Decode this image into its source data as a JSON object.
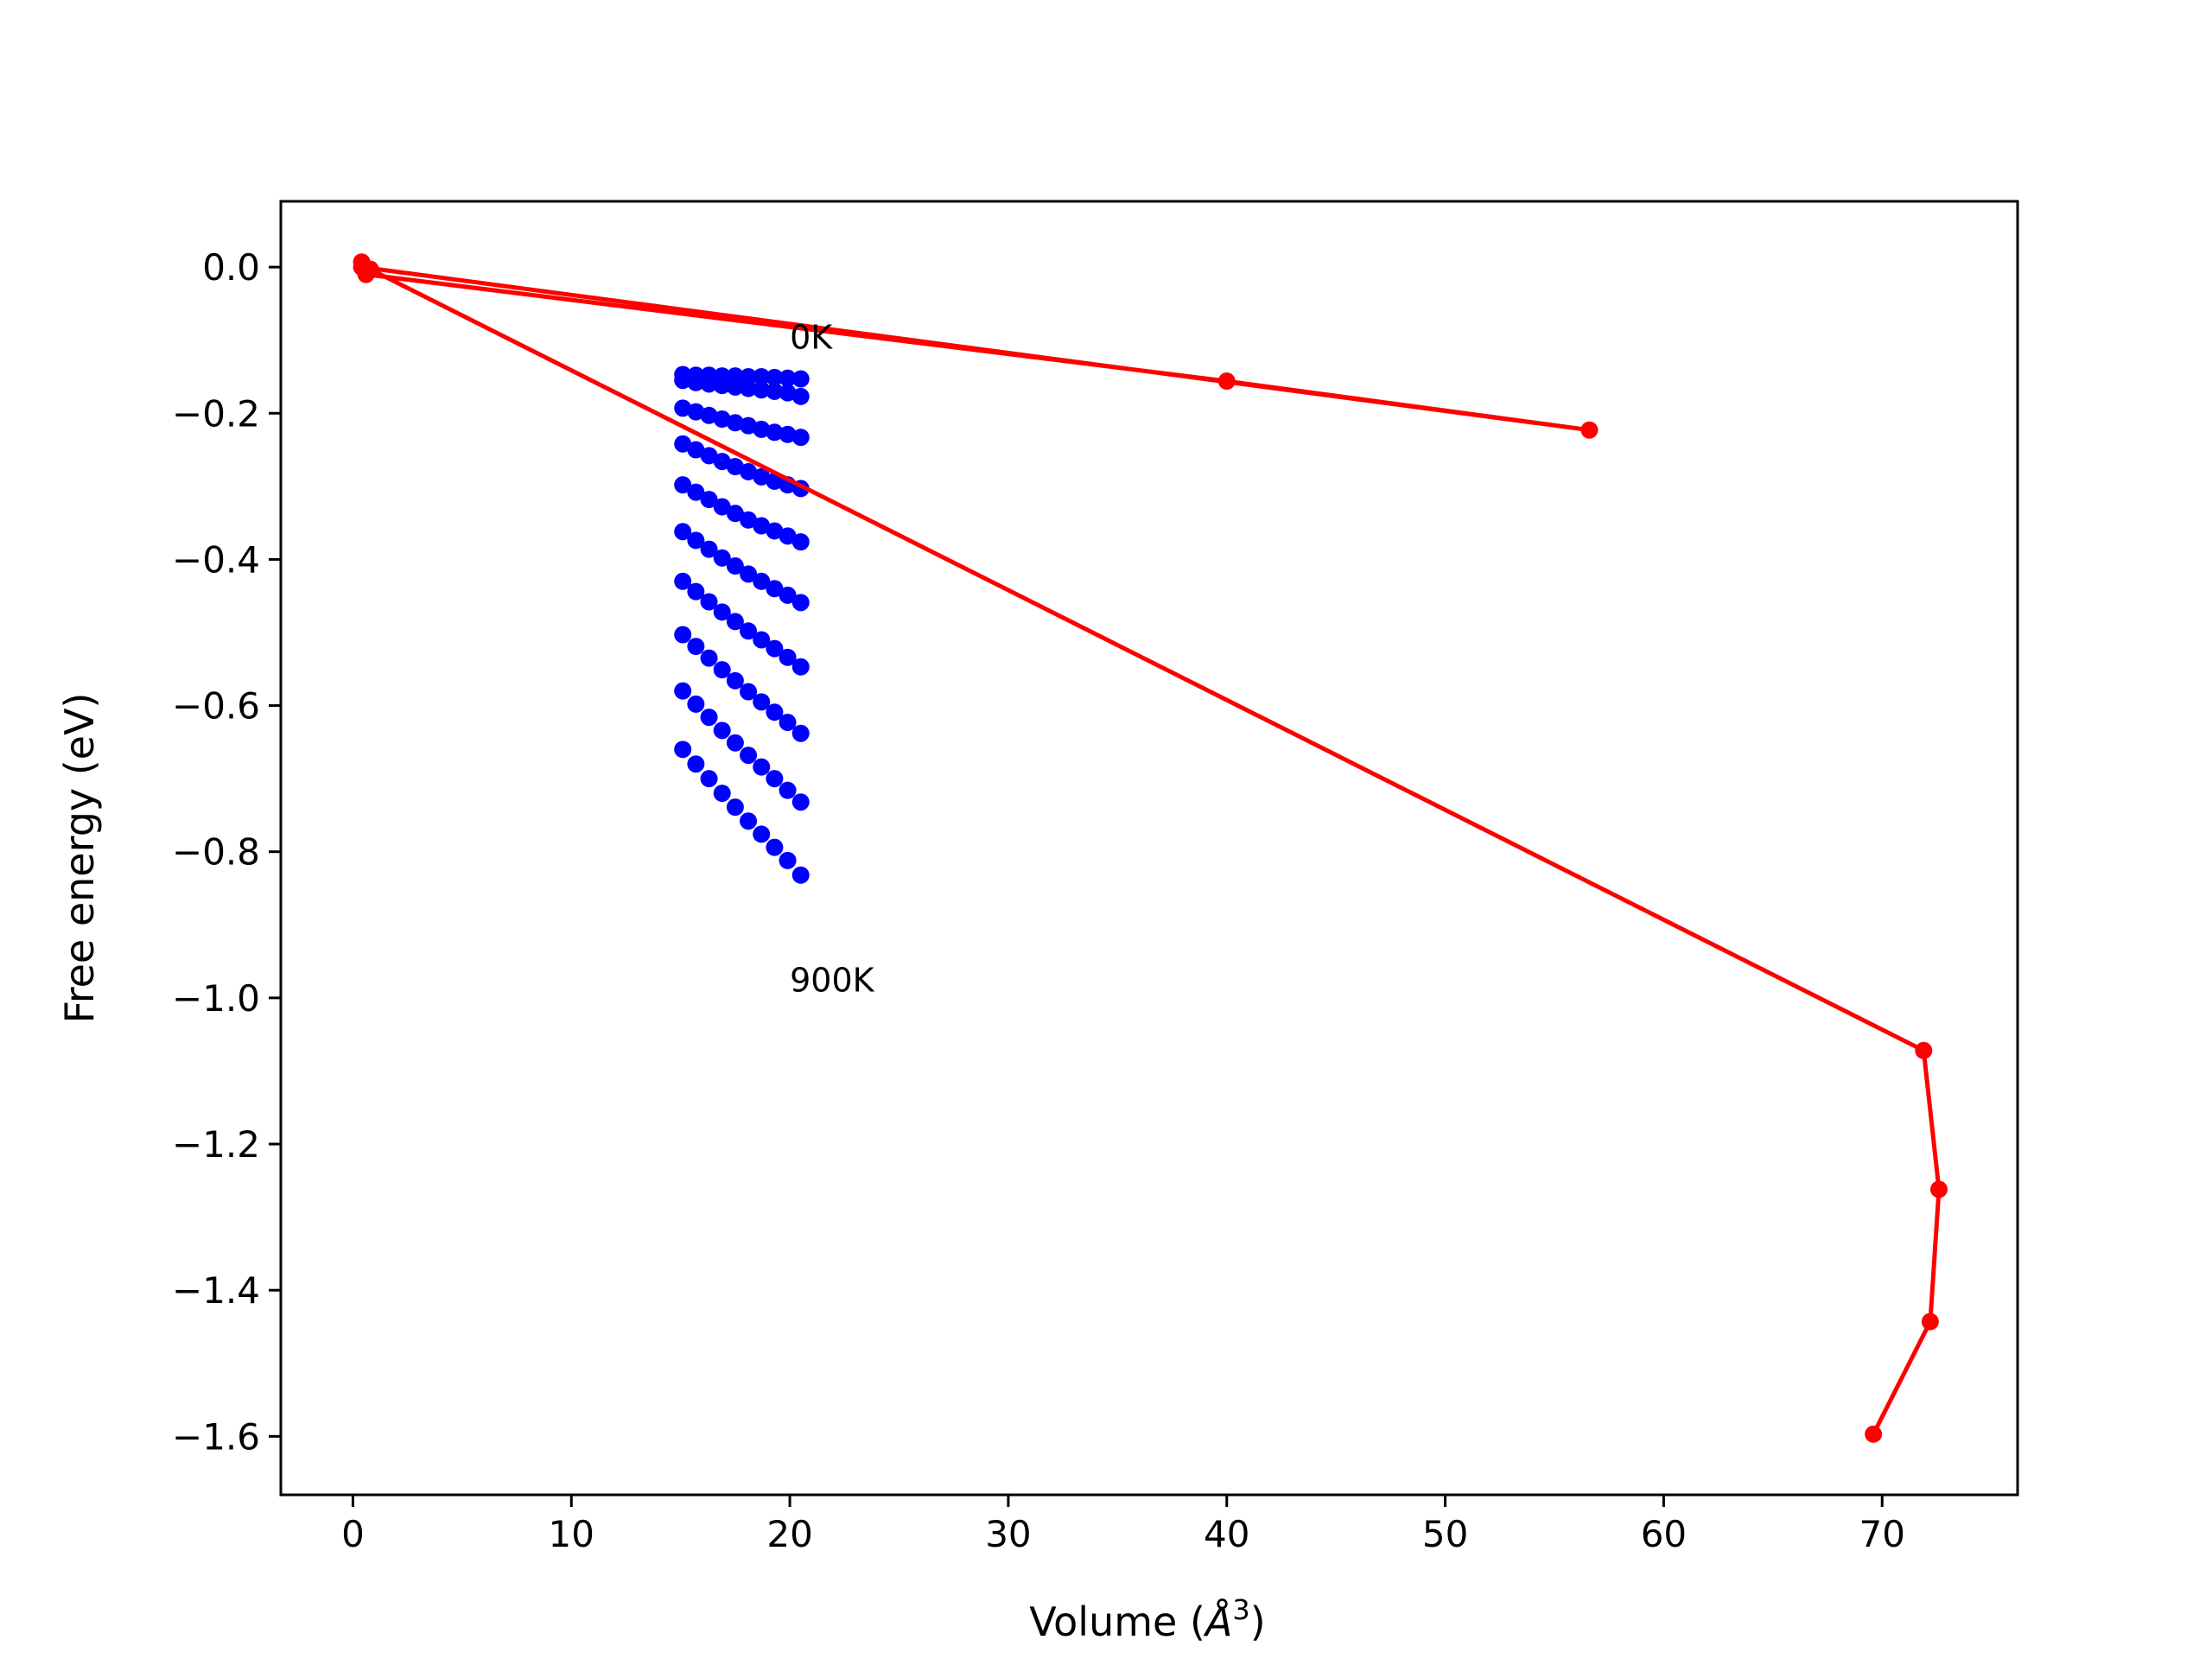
{
  "chart_data": {
    "type": "scatter",
    "xlabel": "Volume",
    "xlabel_unit_base": "Å",
    "xlabel_unit_exp": "3",
    "ylabel": "Free energy (eV)",
    "xlim": [
      -3.3,
      76.2
    ],
    "ylim": [
      -1.68,
      0.09
    ],
    "xticks": [
      0,
      10,
      20,
      30,
      40,
      50,
      60,
      70
    ],
    "xtick_labels": [
      "0",
      "10",
      "20",
      "30",
      "40",
      "50",
      "60",
      "70"
    ],
    "yticks": [
      0.0,
      -0.2,
      -0.4,
      -0.6,
      -0.8,
      -1.0,
      -1.2,
      -1.4,
      -1.6
    ],
    "ytick_labels": [
      "0.0",
      "−0.2",
      "−0.4",
      "−0.6",
      "−0.8",
      "−1.0",
      "−1.2",
      "−1.4",
      "−1.6"
    ],
    "grid": false,
    "annotations": [
      {
        "text": "0K",
        "x": 20.0,
        "y": -0.095
      },
      {
        "text": "900K",
        "x": 20.0,
        "y": -0.975
      }
    ],
    "series": [
      {
        "color": "#0000ff",
        "marker": "dot",
        "line": false,
        "groups": [
          {
            "x": [
              15.1,
              15.7,
              16.3,
              16.9,
              17.5,
              18.1,
              18.7,
              19.3,
              19.9,
              20.5
            ],
            "y": [
              -0.147,
              -0.148,
              -0.148,
              -0.149,
              -0.149,
              -0.15,
              -0.15,
              -0.151,
              -0.152,
              -0.153
            ]
          },
          {
            "x": [
              15.1,
              15.7,
              16.3,
              16.9,
              17.5,
              18.1,
              18.7,
              19.3,
              19.9,
              20.5
            ],
            "y": [
              -0.155,
              -0.158,
              -0.16,
              -0.162,
              -0.164,
              -0.166,
              -0.168,
              -0.17,
              -0.172,
              -0.177
            ]
          },
          {
            "x": [
              15.1,
              15.7,
              16.3,
              16.9,
              17.5,
              18.1,
              18.7,
              19.3,
              19.9,
              20.5
            ],
            "y": [
              -0.193,
              -0.198,
              -0.203,
              -0.208,
              -0.213,
              -0.217,
              -0.222,
              -0.226,
              -0.229,
              -0.233
            ]
          },
          {
            "x": [
              15.1,
              15.7,
              16.3,
              16.9,
              17.5,
              18.1,
              18.7,
              19.3,
              19.9,
              20.5
            ],
            "y": [
              -0.242,
              -0.25,
              -0.258,
              -0.266,
              -0.273,
              -0.28,
              -0.287,
              -0.293,
              -0.298,
              -0.303
            ]
          },
          {
            "x": [
              15.1,
              15.7,
              16.3,
              16.9,
              17.5,
              18.1,
              18.7,
              19.3,
              19.9,
              20.5
            ],
            "y": [
              -0.298,
              -0.308,
              -0.318,
              -0.328,
              -0.337,
              -0.346,
              -0.354,
              -0.361,
              -0.368,
              -0.376
            ]
          },
          {
            "x": [
              15.1,
              15.7,
              16.3,
              16.9,
              17.5,
              18.1,
              18.7,
              19.3,
              19.9,
              20.5
            ],
            "y": [
              -0.362,
              -0.374,
              -0.386,
              -0.398,
              -0.409,
              -0.42,
              -0.43,
              -0.44,
              -0.449,
              -0.459
            ]
          },
          {
            "x": [
              15.1,
              15.7,
              16.3,
              16.9,
              17.5,
              18.1,
              18.7,
              19.3,
              19.9,
              20.5
            ],
            "y": [
              -0.43,
              -0.444,
              -0.458,
              -0.472,
              -0.485,
              -0.498,
              -0.51,
              -0.522,
              -0.534,
              -0.547
            ]
          },
          {
            "x": [
              15.1,
              15.7,
              16.3,
              16.9,
              17.5,
              18.1,
              18.7,
              19.3,
              19.9,
              20.5
            ],
            "y": [
              -0.503,
              -0.519,
              -0.535,
              -0.551,
              -0.566,
              -0.581,
              -0.595,
              -0.609,
              -0.623,
              -0.638
            ]
          },
          {
            "x": [
              15.1,
              15.7,
              16.3,
              16.9,
              17.5,
              18.1,
              18.7,
              19.3,
              19.9,
              20.5
            ],
            "y": [
              -0.58,
              -0.598,
              -0.616,
              -0.634,
              -0.651,
              -0.668,
              -0.684,
              -0.7,
              -0.716,
              -0.732
            ]
          },
          {
            "x": [
              15.1,
              15.7,
              16.3,
              16.9,
              17.5,
              18.1,
              18.7,
              19.3,
              19.9,
              20.5
            ],
            "y": [
              -0.66,
              -0.68,
              -0.7,
              -0.72,
              -0.739,
              -0.758,
              -0.776,
              -0.794,
              -0.812,
              -0.832
            ]
          }
        ]
      },
      {
        "color": "#ff0000",
        "marker": "dot",
        "line": true,
        "x": [
          0.4,
          0.6,
          40.0,
          56.6,
          0.4,
          0.8,
          71.9,
          72.6,
          72.2,
          69.6
        ],
        "y": [
          0.007,
          -0.01,
          -0.156,
          -0.223,
          0.0,
          -0.003,
          -1.072,
          -1.262,
          -1.443,
          -1.597
        ]
      }
    ]
  }
}
